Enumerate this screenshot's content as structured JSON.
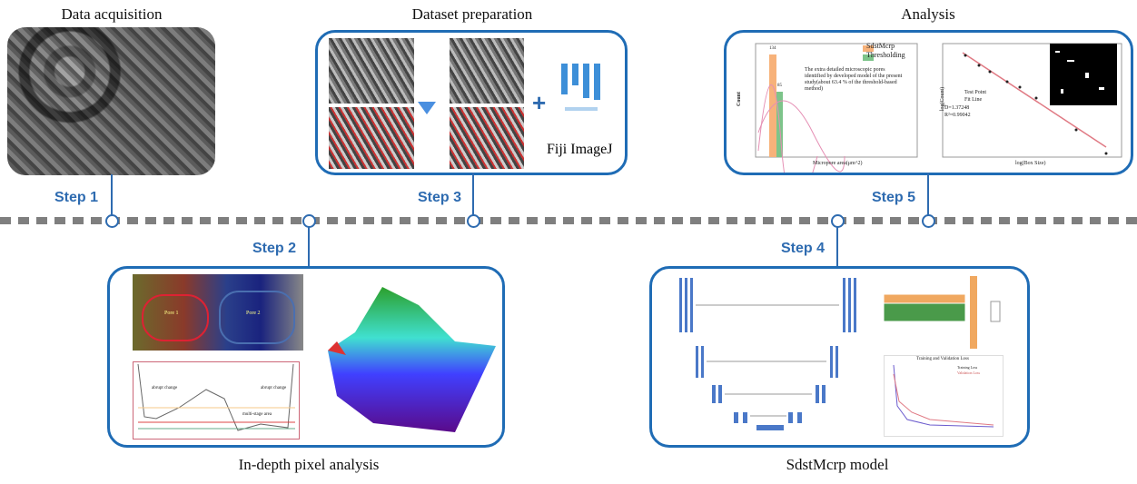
{
  "titles": {
    "data_acquisition": "Data acquisition",
    "dataset_preparation": "Dataset preparation",
    "analysis": "Analysis",
    "pixel_analysis": "In-depth pixel analysis",
    "model": "SdstMcrp model"
  },
  "steps": [
    "Step 1",
    "Step 2",
    "Step 3",
    "Step 4",
    "Step 5"
  ],
  "dataset": {
    "plus": "+",
    "tool": "Fiji ImageJ"
  },
  "histogram": {
    "ylabel": "Count",
    "xlabel": "Micropore area(μm^2)",
    "legend": [
      "SdstMcrp",
      "Thresholding"
    ],
    "annotation": "The extra detailed microscopic pores identified by developed model of the present study(about 63.4 % of the threshold-based method)",
    "bar_labels": [
      "134",
      "85"
    ],
    "yticks": [
      "0",
      "50",
      "100",
      "150"
    ],
    "xticks": [
      "0",
      "10",
      "20",
      "30",
      "40",
      "50",
      "60"
    ]
  },
  "fractal": {
    "ylabel": "log(Count)",
    "xlabel": "log(Box Size)",
    "legend": [
      "Test Point",
      "Fit Line"
    ],
    "D": "D=1.37248",
    "R2": "R²=0.99042",
    "xticks": [
      "1",
      "2",
      "3",
      "4"
    ]
  },
  "pixel": {
    "pore1": "Pore 1",
    "pore2": "Pore 2",
    "abrupt_left": "abrupt change",
    "abrupt_right": "abrupt change",
    "multistage": "multi-stage area"
  },
  "model": {
    "loss_title": "Training and Validation Loss",
    "loss_legend": [
      "Training Loss",
      "Validation Loss"
    ]
  },
  "colors": {
    "accent": "#1f6cb5",
    "sdst": "#f7b27a",
    "threshold": "#7dc48a",
    "fit": "#e07a84"
  }
}
